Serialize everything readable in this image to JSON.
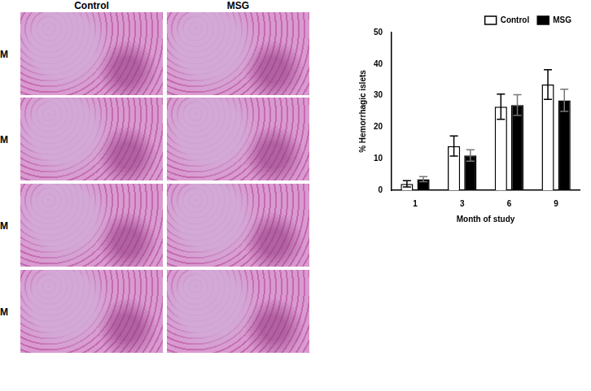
{
  "panels": {
    "column_headers": [
      "Control",
      "MSG"
    ],
    "row_labels": [
      "M",
      "M",
      "M",
      "M"
    ]
  },
  "chart_data": {
    "type": "bar",
    "x_label": "Month of study",
    "y_label": "% Hemorrhagic islets",
    "categories": [
      "1",
      "3",
      "6",
      "9"
    ],
    "series": [
      {
        "name": "Control",
        "color": "#ffffff",
        "values": [
          2,
          14,
          26.5,
          33.5
        ],
        "error": [
          1,
          3.2,
          4,
          4.7
        ]
      },
      {
        "name": "MSG",
        "color": "#000000",
        "values": [
          3.5,
          11,
          27,
          28.5
        ],
        "error": [
          0.8,
          1.8,
          3.3,
          3.5
        ]
      }
    ],
    "ylim": [
      0,
      50
    ],
    "yticks": [
      0,
      10,
      20,
      30,
      40,
      50
    ],
    "grid": false,
    "legend": "upper right"
  }
}
